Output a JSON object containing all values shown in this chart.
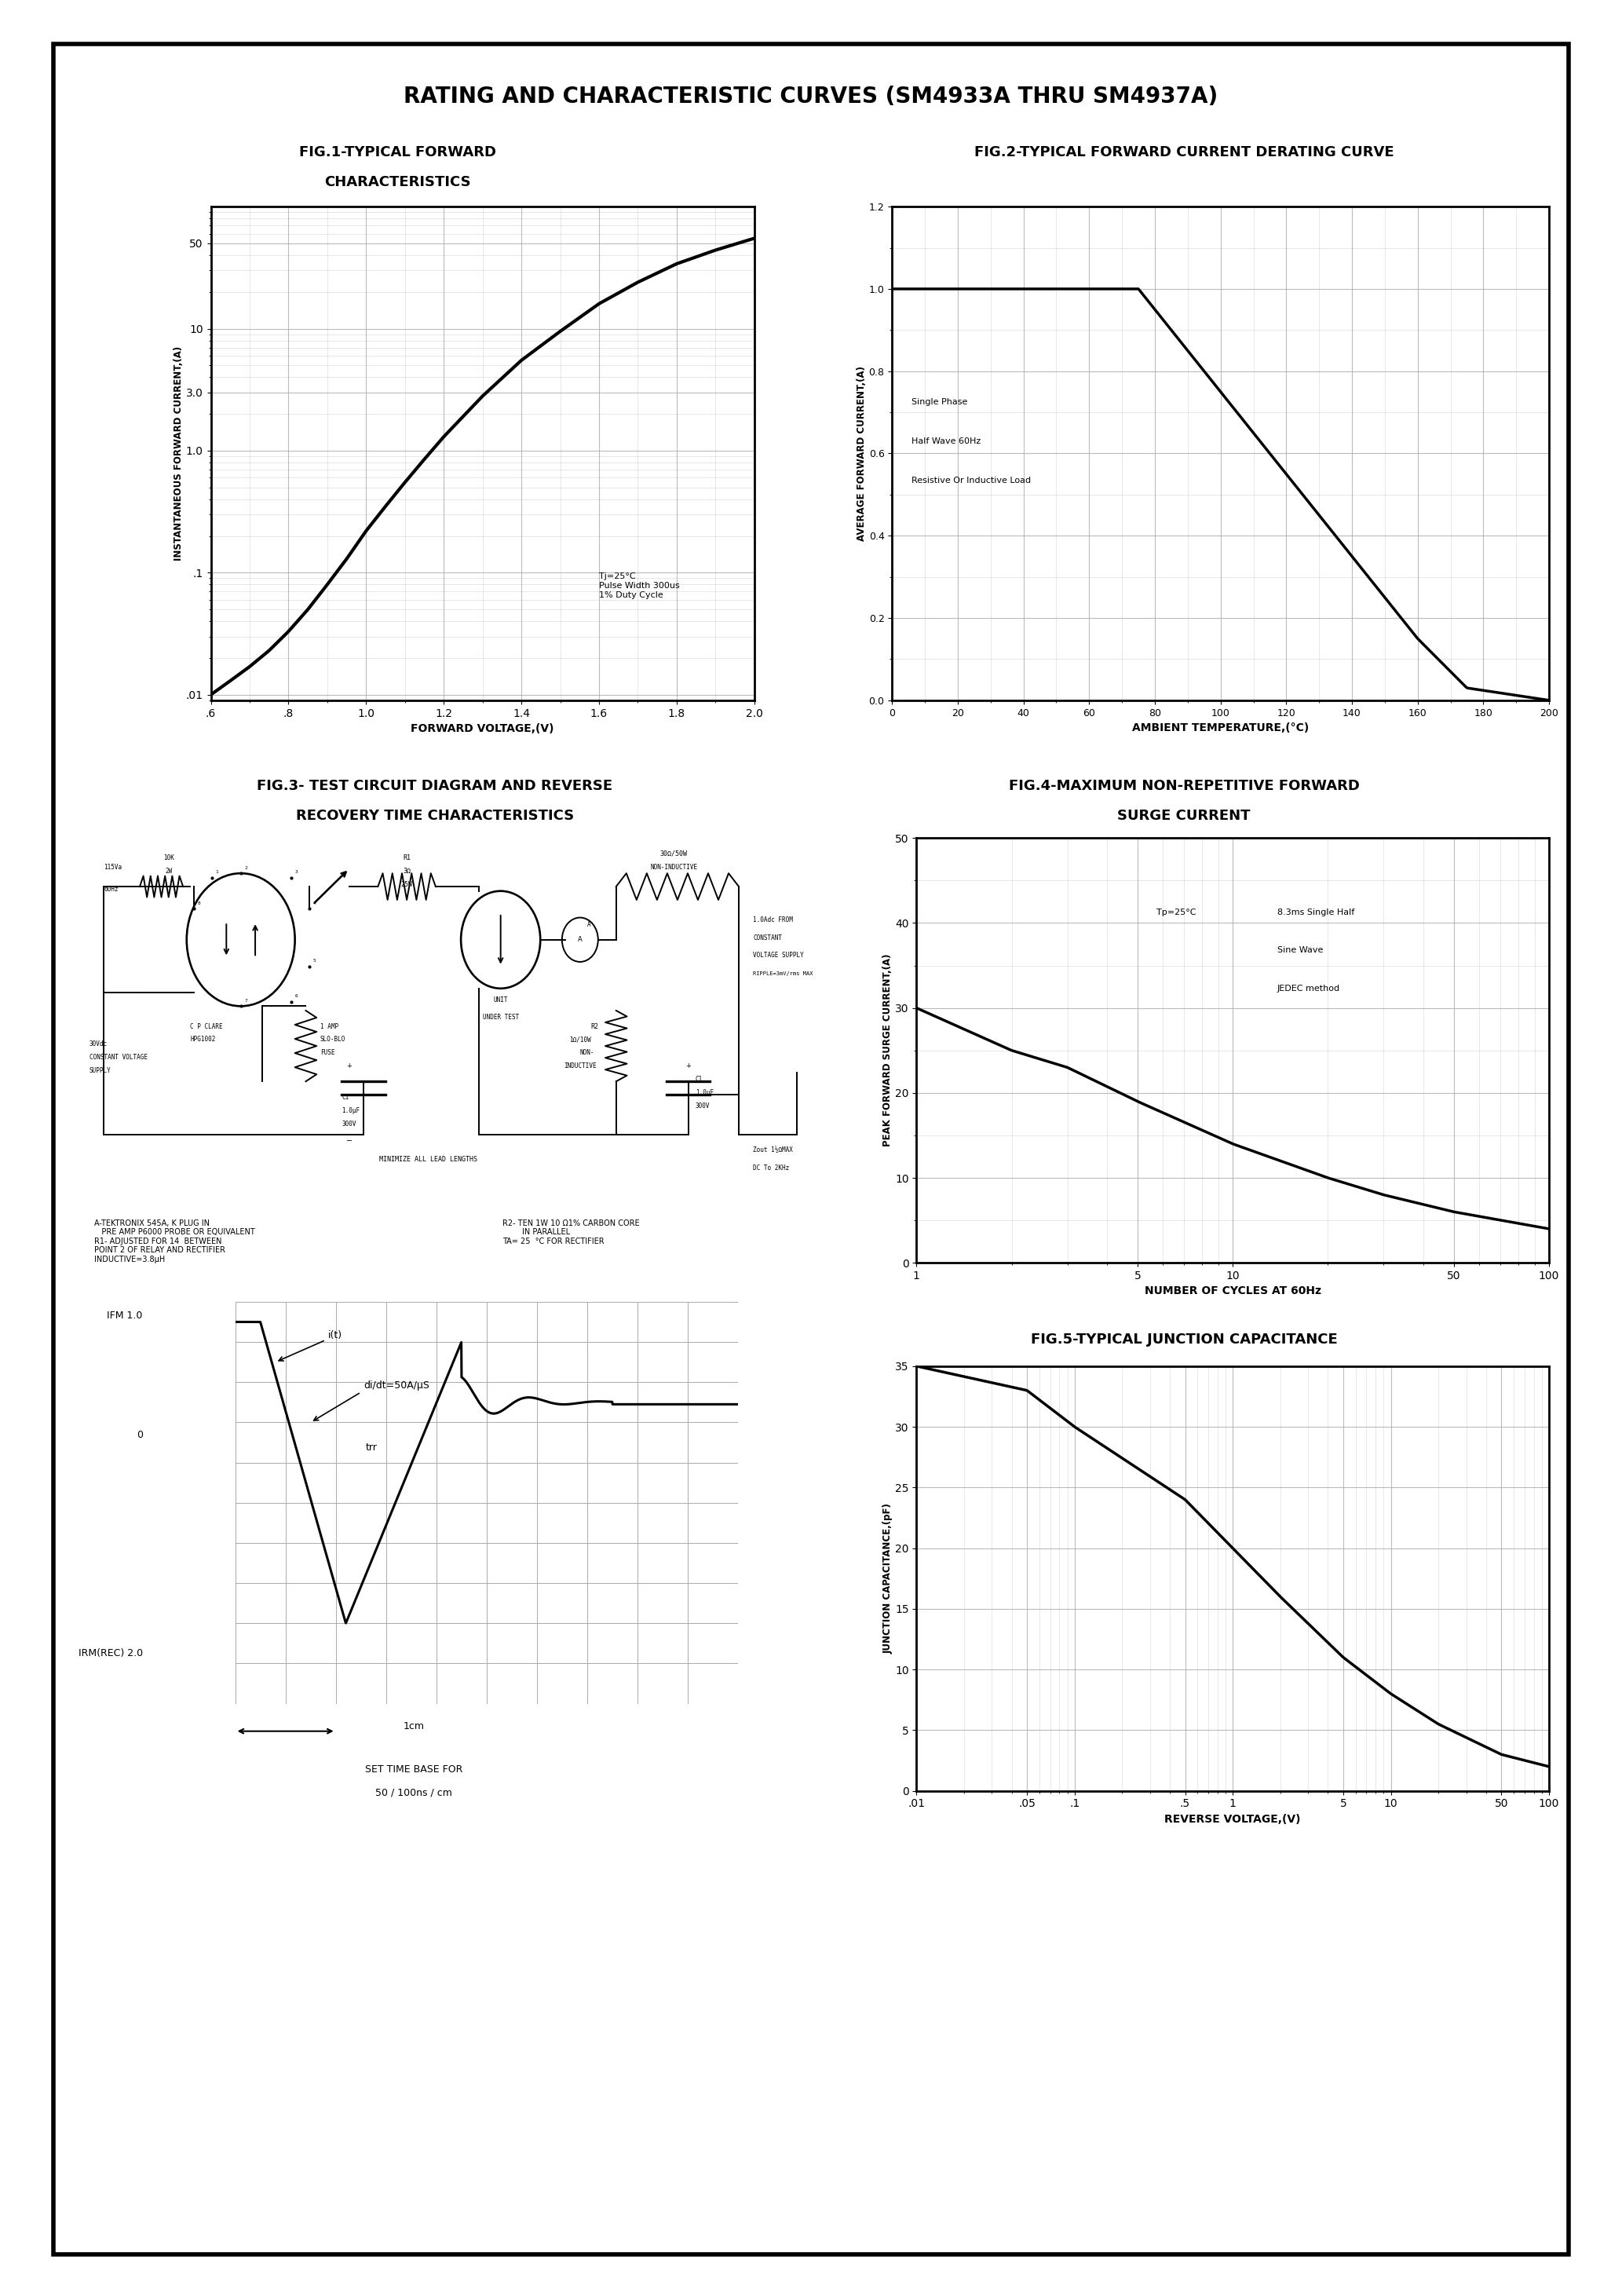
{
  "title": "RATING AND CHARACTERISTIC CURVES (SM4933A THRU SM4937A)",
  "fig1_title1": "FIG.1-TYPICAL FORWARD",
  "fig1_title2": "CHARACTERISTICS",
  "fig1_xlabel": "FORWARD VOLTAGE,(V)",
  "fig1_ylabel": "INSTANTANEOUS FORWARD CURRENT,(A)",
  "fig1_annotation": "Tj=25°C\nPulse Width 300us\n1% Duty Cycle",
  "fig1_ytick_labels": [
    ".01",
    ".1",
    "1.0",
    "3.0",
    "10",
    "50"
  ],
  "fig1_ytick_vals": [
    0.01,
    0.1,
    1.0,
    3.0,
    10,
    50
  ],
  "fig1_xtick_labels": [
    ".6",
    ".8",
    "1.0",
    "1.2",
    "1.4",
    "1.6",
    "1.8",
    "2.0"
  ],
  "fig1_xtick_vals": [
    0.6,
    0.8,
    1.0,
    1.2,
    1.4,
    1.6,
    1.8,
    2.0
  ],
  "fig2_title": "FIG.2-TYPICAL FORWARD CURRENT DERATING CURVE",
  "fig2_xlabel": "AMBIENT TEMPERATURE,(°C)",
  "fig2_ylabel": "AVERAGE FORWARD CURRENT,(A)",
  "fig2_legend": [
    "Single Phase",
    "Half Wave 60Hz",
    "Resistive Or Inductive Load"
  ],
  "fig2_xticks": [
    0,
    20,
    40,
    60,
    80,
    100,
    120,
    140,
    160,
    180,
    200
  ],
  "fig2_yticks": [
    0,
    0.2,
    0.4,
    0.6,
    0.8,
    1.0,
    1.2
  ],
  "fig3_title1": "FIG.3- TEST CIRCUIT DIAGRAM AND REVERSE",
  "fig3_title2": "RECOVERY TIME CHARACTERISTICS",
  "fig4_title1": "FIG.4-MAXIMUM NON-REPETITIVE FORWARD",
  "fig4_title2": "SURGE CURRENT",
  "fig4_xlabel": "NUMBER OF CYCLES AT 60Hz",
  "fig4_ylabel": "PEAK FORWARD SURGE CURRENT,(A)",
  "fig4_annotation": "Tp=25°C     8.3ms Single Half\n                  Sine Wave\n                  JEDEC method",
  "fig4_yticks": [
    0,
    10,
    20,
    30,
    40,
    50
  ],
  "fig5_title": "FIG.5-TYPICAL JUNCTION CAPACITANCE",
  "fig5_xlabel": "REVERSE VOLTAGE,(V)",
  "fig5_ylabel": "JUNCTION CAPACITANCE,(pF)",
  "fig5_xtick_labels": [
    ".01",
    ".05",
    ".1",
    ".5",
    "1",
    "5",
    "10",
    "50",
    "100"
  ],
  "fig5_xtick_vals": [
    0.01,
    0.05,
    0.1,
    0.5,
    1,
    5,
    10,
    50,
    100
  ],
  "fig5_yticks": [
    0,
    5,
    10,
    15,
    20,
    25,
    30,
    35
  ],
  "notes_left": "A-TEKTRONIX 545A, K PLUG IN\n   PRE AMP P6000 PROBE OR EQUIVALENT\nR1- ADJUSTED FOR 14  BETWEEN\nPOINT 2 OF RELAY AND RECTIFIER\nINDUCTIVE=3.8μH",
  "notes_right": "R2- TEN 1W 10 Ω1% CARBON CORE\n        IN PARALLEL\nTA= 25  °C FOR RECTIFIER",
  "osc_label_top": "IFM 1.0",
  "osc_label_mid": "0",
  "osc_label_bot": "IRM(REC) 2.0",
  "osc_annot1": "i(t)",
  "osc_annot2": "di/dt=50A/μS",
  "osc_annot3": "trr",
  "set_time_base1": "SET TIME BASE FOR",
  "set_time_base2": "50 / 100ns / cm",
  "background_color": "#ffffff",
  "border_color": "#000000",
  "line_color": "#000000",
  "grid_color": "#aaaaaa",
  "text_color": "#000000"
}
